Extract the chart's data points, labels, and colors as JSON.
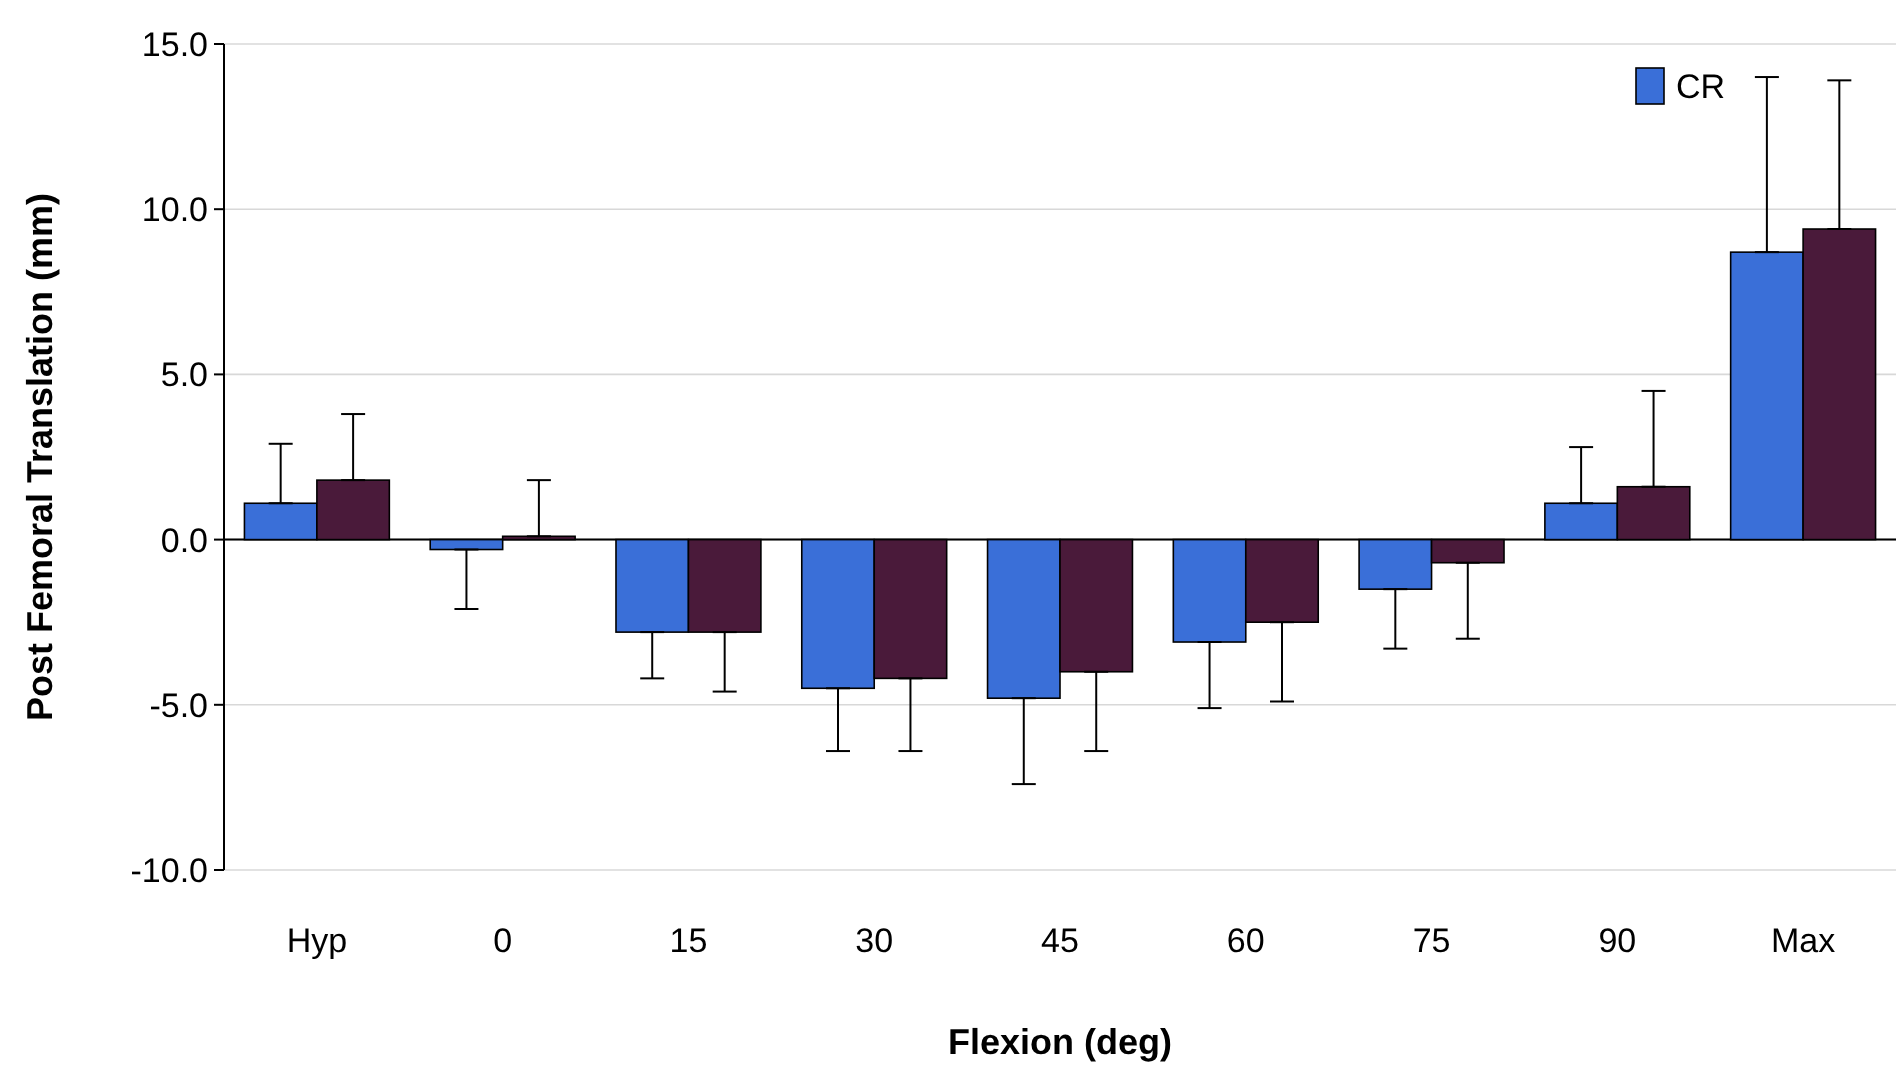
{
  "chart_data": {
    "type": "bar",
    "xlabel": "Flexion (deg)",
    "ylabel": "Post Femoral Translation (mm)",
    "categories": [
      "Hyp",
      "0",
      "15",
      "30",
      "45",
      "60",
      "75",
      "90",
      "Max"
    ],
    "series": [
      {
        "name": "CR",
        "color": "#3a6fd8",
        "values": [
          1.1,
          -0.3,
          -2.8,
          -4.5,
          -4.8,
          -3.1,
          -1.5,
          1.1,
          8.7
        ],
        "errors": [
          [
            1.1,
            2.9
          ],
          [
            -2.1,
            -0.3
          ],
          [
            -4.2,
            -2.8
          ],
          [
            -6.4,
            -4.5
          ],
          [
            -7.4,
            -4.8
          ],
          [
            -5.1,
            -3.1
          ],
          [
            -3.3,
            -1.5
          ],
          [
            1.1,
            2.8
          ],
          [
            8.7,
            14.0
          ]
        ]
      },
      {
        "color": "#4a1a3a",
        "values": [
          1.8,
          0.1,
          -2.8,
          -4.2,
          -4.0,
          -2.5,
          -0.7,
          1.6,
          9.4
        ],
        "errors": [
          [
            1.8,
            3.8
          ],
          [
            0.1,
            1.8
          ],
          [
            -4.6,
            -2.8
          ],
          [
            -6.4,
            -4.2
          ],
          [
            -6.4,
            -4.0
          ],
          [
            -4.9,
            -2.5
          ],
          [
            -3.0,
            -0.7
          ],
          [
            1.6,
            4.5
          ],
          [
            9.4,
            13.9
          ]
        ]
      }
    ],
    "ylim": [
      -10,
      15
    ],
    "yticks": [
      {
        "value": -10,
        "label": "-10.0"
      },
      {
        "value": -5,
        "label": "-5.0"
      },
      {
        "value": 0,
        "label": "0.0"
      },
      {
        "value": 5,
        "label": "5.0"
      },
      {
        "value": 10,
        "label": "10.0"
      },
      {
        "value": 15,
        "label": "15.0"
      }
    ],
    "grid": "y",
    "legend": "top right"
  }
}
